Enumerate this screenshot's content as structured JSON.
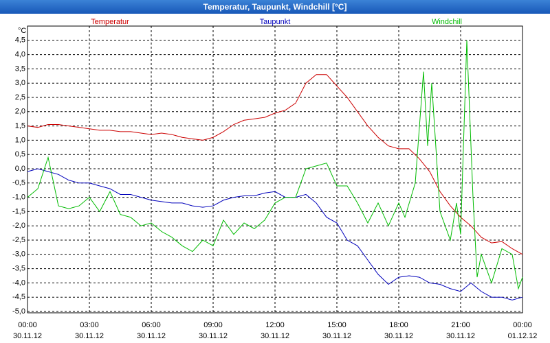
{
  "chart_data": {
    "type": "line",
    "title": "Temperatur, Taupunkt, Windchill [°C]",
    "y_unit": "°C",
    "x": [
      0,
      0.5,
      1,
      1.5,
      2,
      2.5,
      3,
      3.5,
      4,
      4.5,
      5,
      5.5,
      6,
      6.5,
      7,
      7.5,
      8,
      8.5,
      9,
      9.5,
      10,
      10.5,
      11,
      11.5,
      12,
      12.5,
      13,
      13.5,
      14,
      14.5,
      15,
      15.5,
      16,
      16.5,
      17,
      17.5,
      18,
      18.5,
      19,
      19.5,
      20,
      20.5,
      21,
      21.5,
      22,
      22.5,
      23,
      23.5,
      24
    ],
    "series": [
      {
        "name": "Temperatur",
        "color": "#cc0000",
        "values": [
          1.5,
          1.45,
          1.55,
          1.55,
          1.5,
          1.45,
          1.4,
          1.35,
          1.35,
          1.3,
          1.3,
          1.25,
          1.2,
          1.25,
          1.2,
          1.1,
          1.05,
          1.0,
          1.1,
          1.3,
          1.55,
          1.7,
          1.75,
          1.8,
          1.95,
          2.05,
          2.3,
          3.0,
          3.3,
          3.3,
          2.9,
          2.5,
          2.0,
          1.5,
          1.1,
          0.8,
          0.7,
          0.7,
          0.35,
          -0.1,
          -0.8,
          -1.3,
          -1.7,
          -2.0,
          -2.4,
          -2.6,
          -2.55,
          -2.8,
          -3.0
        ]
      },
      {
        "name": "Taupunkt",
        "color": "#0000bb",
        "values": [
          -0.1,
          0.0,
          -0.1,
          -0.2,
          -0.4,
          -0.5,
          -0.5,
          -0.6,
          -0.7,
          -0.9,
          -0.9,
          -1.0,
          -1.1,
          -1.15,
          -1.2,
          -1.2,
          -1.3,
          -1.35,
          -1.3,
          -1.1,
          -1.0,
          -0.95,
          -0.95,
          -0.85,
          -0.8,
          -1.0,
          -1.0,
          -0.9,
          -1.2,
          -1.7,
          -1.9,
          -2.5,
          -2.7,
          -3.2,
          -3.7,
          -4.05,
          -3.8,
          -3.75,
          -3.8,
          -4.0,
          -4.05,
          -4.2,
          -4.3,
          -4.0,
          -4.3,
          -4.5,
          -4.5,
          -4.6,
          -4.5
        ]
      },
      {
        "name": "Windchill",
        "color": "#00bb00",
        "x": [
          0,
          0.5,
          1,
          1.5,
          2,
          2.5,
          3,
          3.5,
          4,
          4.5,
          5,
          5.5,
          6,
          6.5,
          7,
          7.5,
          8,
          8.5,
          9,
          9.5,
          10,
          10.5,
          11,
          11.5,
          12,
          12.5,
          13,
          13.5,
          14,
          14.5,
          15,
          15.5,
          16,
          16.5,
          17,
          17.5,
          18,
          18.3,
          18.8,
          19.2,
          19.4,
          19.6,
          20,
          20.5,
          20.8,
          21,
          21.3,
          21.6,
          21.8,
          22,
          22.5,
          23,
          23.5,
          23.8,
          24
        ],
        "values": [
          -1.0,
          -0.7,
          0.4,
          -1.3,
          -1.4,
          -1.3,
          -1.0,
          -1.5,
          -0.8,
          -1.6,
          -1.7,
          -2.0,
          -1.9,
          -2.2,
          -2.4,
          -2.7,
          -2.9,
          -2.5,
          -2.7,
          -1.8,
          -2.3,
          -1.9,
          -2.1,
          -1.8,
          -1.2,
          -1.0,
          -1.0,
          0.0,
          0.1,
          0.2,
          -0.6,
          -0.6,
          -1.2,
          -1.9,
          -1.2,
          -2.0,
          -1.2,
          -1.7,
          -0.5,
          3.4,
          0.8,
          3.0,
          -1.5,
          -2.5,
          -1.2,
          -2.3,
          4.5,
          -1.0,
          -3.8,
          -3.0,
          -4.0,
          -2.8,
          -3.0,
          -4.2,
          -3.8
        ]
      }
    ],
    "xlim": [
      0,
      24
    ],
    "xticks": [
      {
        "value": 0,
        "label": "00:00"
      },
      {
        "value": 3,
        "label": "03:00"
      },
      {
        "value": 6,
        "label": "06:00"
      },
      {
        "value": 9,
        "label": "09:00"
      },
      {
        "value": 12,
        "label": "12:00"
      },
      {
        "value": 15,
        "label": "15:00"
      },
      {
        "value": 18,
        "label": "18:00"
      },
      {
        "value": 21,
        "label": "21:00"
      },
      {
        "value": 24,
        "label": "00:00"
      }
    ],
    "xtick_dates": [
      "30.11.12",
      "30.11.12",
      "30.11.12",
      "30.11.12",
      "30.11.12",
      "30.11.12",
      "30.11.12",
      "30.11.12",
      "01.12.12"
    ],
    "ylim": [
      -5,
      5
    ],
    "yticks": [
      {
        "value": 4.5,
        "label": "4,5"
      },
      {
        "value": 4,
        "label": "4,0"
      },
      {
        "value": 3.5,
        "label": "3,5"
      },
      {
        "value": 3,
        "label": "3,0"
      },
      {
        "value": 2.5,
        "label": "2,5"
      },
      {
        "value": 2,
        "label": "2,0"
      },
      {
        "value": 1.5,
        "label": "1,5"
      },
      {
        "value": 1,
        "label": "1,0"
      },
      {
        "value": 0.5,
        "label": "0,5"
      },
      {
        "value": 0,
        "label": "0,0"
      },
      {
        "value": -0.5,
        "label": "-0,5"
      },
      {
        "value": -1,
        "label": "-1,0"
      },
      {
        "value": -1.5,
        "label": "-1,5"
      },
      {
        "value": -2,
        "label": "-2,0"
      },
      {
        "value": -2.5,
        "label": "-2,5"
      },
      {
        "value": -3,
        "label": "-3,0"
      },
      {
        "value": -3.5,
        "label": "-3,5"
      },
      {
        "value": -4,
        "label": "-4,0"
      },
      {
        "value": -4.5,
        "label": "-4,5"
      },
      {
        "value": -5,
        "label": "-5,0"
      }
    ],
    "grid": true
  }
}
